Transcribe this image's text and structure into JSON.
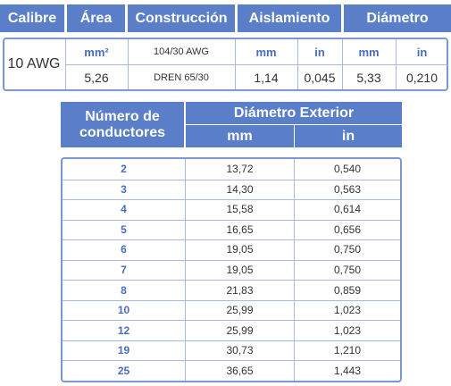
{
  "top_table": {
    "headers": [
      "Calibre",
      "Área",
      "Construcción",
      "Aislamiento",
      "Diámetro"
    ],
    "gauge": "10 AWG",
    "units": [
      "mm²",
      "104/30 AWG",
      "mm",
      "in",
      "mm",
      "in"
    ],
    "values": [
      "5,26",
      "DREN 65/30",
      "1,14",
      "0,045",
      "5,33",
      "0,210"
    ]
  },
  "diameter_table": {
    "header_conductors": "Número de conductores",
    "header_diameter": "Diámetro Exterior",
    "header_mm": "mm",
    "header_in": "in",
    "rows": [
      [
        "2",
        "13,72",
        "0,540"
      ],
      [
        "3",
        "14,30",
        "0,563"
      ],
      [
        "4",
        "15,58",
        "0,614"
      ],
      [
        "5",
        "16,65",
        "0,656"
      ],
      [
        "6",
        "19,05",
        "0,750"
      ],
      [
        "7",
        "19,05",
        "0,750"
      ],
      [
        "8",
        "21,83",
        "0,859"
      ],
      [
        "10",
        "25,99",
        "1,023"
      ],
      [
        "12",
        "25,99",
        "1,023"
      ],
      [
        "19",
        "30,73",
        "1,210"
      ],
      [
        "25",
        "36,65",
        "1,443"
      ]
    ]
  }
}
